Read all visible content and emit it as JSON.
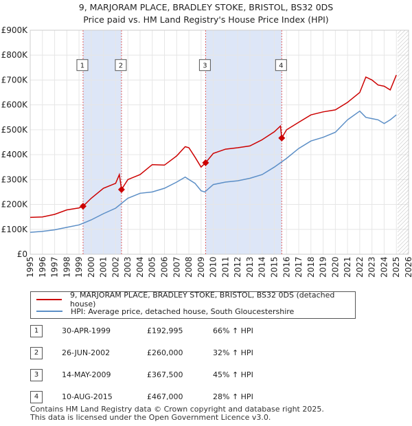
{
  "title_line1": "9, MARJORAM PLACE, BRADLEY STOKE, BRISTOL, BS32 0DS",
  "title_line2": "Price paid vs. HM Land Registry's House Price Index (HPI)",
  "colors": {
    "property": "#cc0000",
    "hpi": "#5b8ec6",
    "band": "#dde6f7",
    "marker": "#cc0000",
    "hatch": "#bbbbbb"
  },
  "legend": {
    "property_label": "9, MARJORAM PLACE, BRADLEY STOKE, BRISTOL, BS32 0DS (detached house)",
    "hpi_label": "HPI: Average price, detached house, South Gloucestershire"
  },
  "sales": [
    {
      "num": "1",
      "date": "30-APR-1999",
      "price": "£192,995",
      "hpi": "66% ↑ HPI"
    },
    {
      "num": "2",
      "date": "26-JUN-2002",
      "price": "£260,000",
      "hpi": "32% ↑ HPI"
    },
    {
      "num": "3",
      "date": "14-MAY-2009",
      "price": "£367,500",
      "hpi": "45% ↑ HPI"
    },
    {
      "num": "4",
      "date": "10-AUG-2015",
      "price": "£467,000",
      "hpi": "28% ↑ HPI"
    }
  ],
  "footer_line1": "Contains HM Land Registry data © Crown copyright and database right 2025.",
  "footer_line2": "This data is licensed under the Open Government Licence v3.0.",
  "chart_data": {
    "type": "line",
    "title": "9, MARJORAM PLACE, BRADLEY STOKE, BRISTOL, BS32 0DS",
    "subtitle": "Price paid vs. HM Land Registry's House Price Index (HPI)",
    "xlabel": "",
    "ylabel": "",
    "xlim": [
      1995,
      2026
    ],
    "ylim": [
      0,
      900000
    ],
    "y_ticks": [
      0,
      100000,
      200000,
      300000,
      400000,
      500000,
      600000,
      700000,
      800000,
      900000
    ],
    "y_tick_labels": [
      "£0",
      "£100K",
      "£200K",
      "£300K",
      "£400K",
      "£500K",
      "£600K",
      "£700K",
      "£800K",
      "£900K"
    ],
    "x_ticks": [
      1995,
      1996,
      1997,
      1998,
      1999,
      2000,
      2001,
      2002,
      2003,
      2004,
      2005,
      2006,
      2007,
      2008,
      2009,
      2010,
      2011,
      2012,
      2013,
      2014,
      2015,
      2016,
      2017,
      2018,
      2019,
      2020,
      2021,
      2022,
      2023,
      2024,
      2025,
      2026
    ],
    "x_tick_labels": [
      "1995",
      "1996",
      "1997",
      "1998",
      "1999",
      "2000",
      "2001",
      "2002",
      "2003",
      "2004",
      "2005",
      "2006",
      "2007",
      "2008",
      "2009",
      "2010",
      "2011",
      "2012",
      "2013",
      "2014",
      "2015",
      "2016",
      "2017",
      "2018",
      "2019",
      "2020",
      "2021",
      "2022",
      "2023",
      "2024",
      "2025",
      "2026"
    ],
    "grid": true,
    "shaded_periods": [
      [
        1999.33,
        2002.48
      ],
      [
        2009.37,
        2015.61
      ]
    ],
    "future_hatch_from": 2025.1,
    "sale_markers": [
      {
        "label": "1",
        "x": 1999.33,
        "y": 192995
      },
      {
        "label": "2",
        "x": 2002.48,
        "y": 260000
      },
      {
        "label": "3",
        "x": 2009.37,
        "y": 367500
      },
      {
        "label": "4",
        "x": 2015.61,
        "y": 467000
      }
    ],
    "marker_label_y": 760000,
    "series": [
      {
        "name": "9, MARJORAM PLACE, BRADLEY STOKE, BRISTOL, BS32 0DS (detached house)",
        "x": [
          1995,
          1996,
          1997,
          1998,
          1999,
          1999.33,
          2000,
          2001,
          2002,
          2002.3,
          2002.48,
          2003,
          2004,
          2005,
          2006,
          2007,
          2007.7,
          2008,
          2008.5,
          2009,
          2009.37,
          2010,
          2011,
          2012,
          2013,
          2014,
          2015,
          2015.5,
          2015.61,
          2016,
          2017,
          2018,
          2019,
          2020,
          2021,
          2022,
          2022.5,
          2023,
          2023.5,
          2024,
          2024.5,
          2025
        ],
        "values": [
          148000,
          150000,
          160000,
          178000,
          186000,
          192995,
          225000,
          265000,
          285000,
          320000,
          260000,
          300000,
          320000,
          360000,
          358000,
          395000,
          432000,
          428000,
          390000,
          350000,
          367500,
          405000,
          422000,
          428000,
          435000,
          460000,
          492000,
          515000,
          467000,
          500000,
          530000,
          560000,
          572000,
          580000,
          610000,
          650000,
          712000,
          700000,
          680000,
          675000,
          660000,
          720000
        ]
      },
      {
        "name": "HPI: Average price, detached house, South Gloucestershire",
        "x": [
          1995,
          1996,
          1997,
          1998,
          1999,
          2000,
          2001,
          2002,
          2003,
          2004,
          2005,
          2006,
          2007,
          2007.7,
          2008,
          2008.5,
          2009,
          2009.3,
          2010,
          2011,
          2012,
          2013,
          2014,
          2015,
          2016,
          2017,
          2018,
          2019,
          2020,
          2021,
          2022,
          2022.5,
          2023,
          2023.5,
          2024,
          2024.5,
          2025
        ],
        "values": [
          88000,
          92000,
          98000,
          108000,
          118000,
          138000,
          163000,
          185000,
          225000,
          245000,
          250000,
          265000,
          290000,
          310000,
          300000,
          285000,
          255000,
          250000,
          280000,
          290000,
          295000,
          305000,
          320000,
          350000,
          385000,
          425000,
          455000,
          470000,
          490000,
          540000,
          575000,
          550000,
          545000,
          540000,
          525000,
          540000,
          560000
        ]
      }
    ]
  }
}
